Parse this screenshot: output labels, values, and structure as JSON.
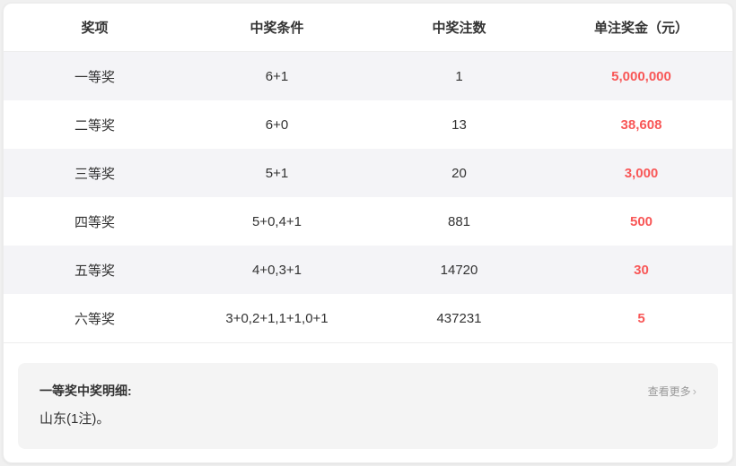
{
  "table": {
    "columns": [
      "奖项",
      "中奖条件",
      "中奖注数",
      "单注奖金（元）"
    ],
    "rows": [
      {
        "prize": "一等奖",
        "condition": "6+1",
        "count": "1",
        "amount": "5,000,000"
      },
      {
        "prize": "二等奖",
        "condition": "6+0",
        "count": "13",
        "amount": "38,608"
      },
      {
        "prize": "三等奖",
        "condition": "5+1",
        "count": "20",
        "amount": "3,000"
      },
      {
        "prize": "四等奖",
        "condition": "5+0,4+1",
        "count": "881",
        "amount": "500"
      },
      {
        "prize": "五等奖",
        "condition": "4+0,3+1",
        "count": "14720",
        "amount": "30"
      },
      {
        "prize": "六等奖",
        "condition": "3+0,2+1,1+1,0+1",
        "count": "437231",
        "amount": "5"
      }
    ]
  },
  "detail_panel": {
    "title": "一等奖中奖明细:",
    "content": "山东(1注)。",
    "more_label": "查看更多",
    "more_icon": "›"
  },
  "colors": {
    "amount_red": "#f85757",
    "stripe_bg": "#f4f4f7",
    "panel_bg": "#f4f4f4",
    "text_dark": "#333333",
    "muted_gray": "#999999"
  }
}
